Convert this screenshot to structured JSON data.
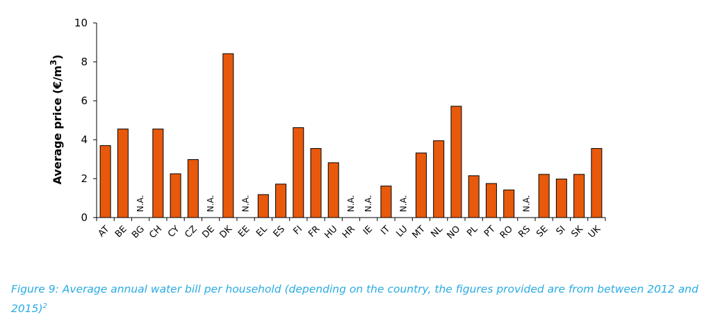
{
  "chart_data": {
    "type": "bar",
    "categories": [
      "AT",
      "BE",
      "BG",
      "CH",
      "CY",
      "CZ",
      "DE",
      "DK",
      "EE",
      "EL",
      "ES",
      "FI",
      "FR",
      "HU",
      "HR",
      "IE",
      "IT",
      "LU",
      "MT",
      "NL",
      "NO",
      "PL",
      "PT",
      "RO",
      "RS",
      "SE",
      "SI",
      "SK",
      "UK"
    ],
    "values": [
      3.7,
      4.55,
      null,
      4.55,
      2.25,
      2.98,
      null,
      8.42,
      null,
      1.18,
      1.72,
      4.62,
      3.55,
      2.82,
      null,
      null,
      1.62,
      null,
      3.32,
      3.95,
      5.72,
      2.15,
      1.75,
      1.42,
      null,
      2.22,
      1.98,
      2.22,
      3.55
    ],
    "na_label": "N.A.",
    "ylabel": "Average price (€/m",
    "ylabel_superscript": "3",
    "ylabel_suffix": ")",
    "ylim": [
      0,
      10
    ],
    "yticks": [
      0,
      2,
      4,
      6,
      8,
      10
    ],
    "bar_color": "#e8590c",
    "bar_edge_color": "#000000",
    "grid": false,
    "legend": "none"
  },
  "caption": {
    "text": "Figure 9: Average annual water bill per household (depending on the country, the figures provided are from between 2012 and 2015)",
    "footnote_marker": "2",
    "color": "#29abe2"
  }
}
